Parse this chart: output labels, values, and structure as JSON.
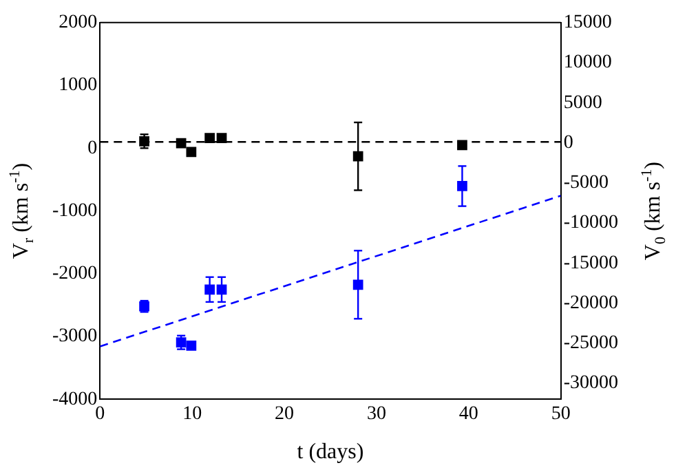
{
  "chart_data": {
    "type": "scatter",
    "xlabel": "t (days)",
    "ylabel": "V$_{r}$ (km s$^{-1}$)",
    "y2label": "V$_{0}$ (km s$^{-1}$)",
    "xlim": [
      0,
      50
    ],
    "xticks": [
      0,
      10,
      20,
      30,
      40,
      50
    ],
    "ylim": [
      -4000,
      2000
    ],
    "yticks": [
      -4000,
      -3000,
      -2000,
      -1000,
      0,
      1000,
      2000
    ],
    "y2lim": [
      -32000,
      15000
    ],
    "y2ticks": [
      -30000,
      -25000,
      -20000,
      -15000,
      -10000,
      -5000,
      0,
      5000,
      10000,
      15000
    ],
    "marker": "square",
    "grid": false,
    "legend": false,
    "series": [
      {
        "color": "#000000",
        "x": [
          4.8,
          8.8,
          9.9,
          11.9,
          13.2,
          28,
          39.3
        ],
        "values": [
          110,
          80,
          -60,
          160,
          160,
          -130,
          50
        ],
        "errors": [
          110,
          null,
          null,
          null,
          null,
          [
            -670,
            410
          ],
          null
        ]
      },
      {
        "axis": "y2",
        "color": "#0000ff",
        "x": [
          4.8,
          8.8,
          9.9,
          11.9,
          13.2,
          28,
          39.3
        ],
        "values": [
          -20400,
          -24900,
          -25300,
          -18300,
          -18300,
          -17700,
          -5400
        ],
        "errors": [
          700,
          850,
          null,
          1550,
          1550,
          4250,
          2500
        ]
      },
      {
        "type": "line",
        "axis": "y2",
        "color": "#0000ff",
        "line_style": "dashed",
        "marker": "none",
        "x": [
          0,
          50
        ],
        "values": [
          -25400,
          -6600
        ]
      }
    ],
    "ref_lines": [
      {
        "axis": "y",
        "value": 100,
        "color": "#000000",
        "line_style": "dashed"
      }
    ]
  }
}
